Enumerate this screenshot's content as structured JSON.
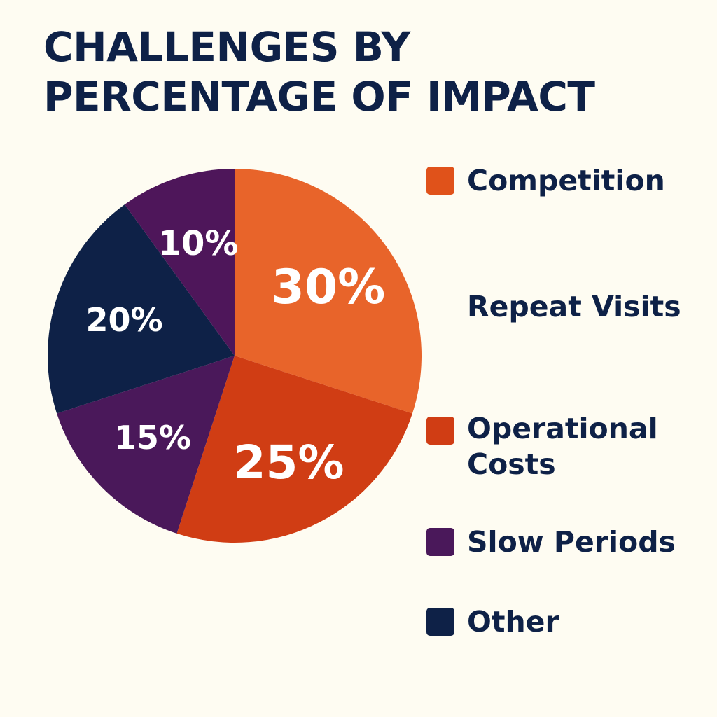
{
  "title_lines": [
    "CHALLENGES BY",
    "PERCENTAGE OF IMPACT"
  ],
  "chart_data": {
    "type": "pie",
    "title": "CHALLENGES BY PERCENTAGE OF IMPACT",
    "slices": [
      {
        "label": "30%",
        "value": 30,
        "color": "#e8642a"
      },
      {
        "label": "25%",
        "value": 25,
        "color": "#d03d14"
      },
      {
        "label": "15%",
        "value": 15,
        "color": "#4a185a"
      },
      {
        "label": "20%",
        "value": 20,
        "color": "#0e2147"
      },
      {
        "label": "10%",
        "value": 10,
        "color": "#4e165a"
      }
    ],
    "legend": [
      {
        "label": "Competition",
        "color": "#e0521a"
      },
      {
        "label": "Repeat Visits",
        "color": null
      },
      {
        "label": "Operational Costs",
        "color": "#d03d14"
      },
      {
        "label": "Slow Periods",
        "color": "#4a185a"
      },
      {
        "label": "Other",
        "color": "#0e2147"
      }
    ],
    "legend_placement": "right"
  }
}
